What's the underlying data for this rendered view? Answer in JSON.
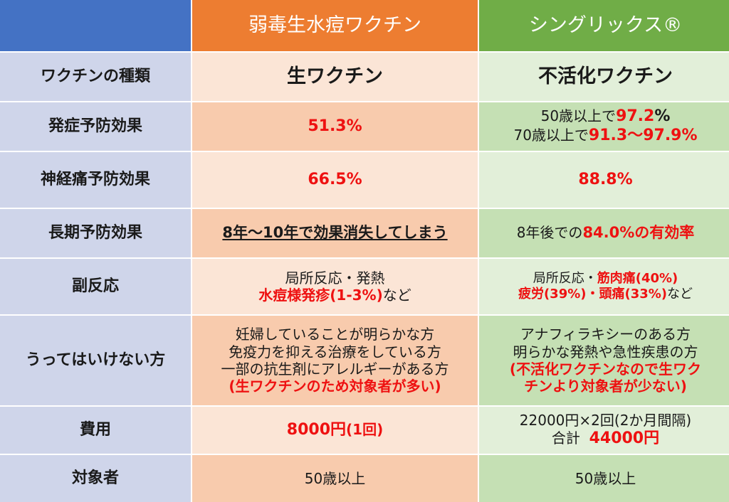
{
  "colors": {
    "header_blank": "#4472c4",
    "header_live": "#ed7d31",
    "header_shingrix": "#70ad47",
    "label_bg": "#cfd5ea",
    "live_light": "#fbe5d6",
    "live_dark": "#f8cbad",
    "shingrix_light": "#e2efd9",
    "shingrix_dark": "#c5e0b4",
    "emphasis_red": "#ee1111"
  },
  "header": {
    "col_live": "弱毒生水痘ワクチン",
    "col_shingrix": "シングリックス®"
  },
  "rows": {
    "type": {
      "label": "ワクチンの種類",
      "live": "生ワクチン",
      "shingrix": "不活化ワクチン"
    },
    "prevention": {
      "label": "発症予防効果",
      "live": "51.3%",
      "shingrix_l1_a": "50歳以上で",
      "shingrix_l1_b": "97.2",
      "shingrix_l1_c": "%",
      "shingrix_l2_a": "70歳以上で",
      "shingrix_l2_b": "91.3〜97.9%"
    },
    "neuralgia": {
      "label": "神経痛予防効果",
      "live": "66.5%",
      "shingrix": "88.8%"
    },
    "longterm": {
      "label": "長期予防効果",
      "live": "8年〜10年で効果消失してしまう",
      "shingrix_a": "8年後での",
      "shingrix_b": "84.0%の有効率"
    },
    "side_effects": {
      "label": "副反応",
      "live_l1": "局所反応・発熱",
      "live_l2_a": "水痘様発疹(1-3%)",
      "live_l2_b": "など",
      "shingrix_l1_a": "局所反応・",
      "shingrix_l1_b": "筋肉痛(40%)",
      "shingrix_l2_a": "疲労(39%)・頭痛(33%)",
      "shingrix_l2_b": "など"
    },
    "contraindications": {
      "label": "うってはいけない方",
      "live_l1": "妊婦していることが明らかな方",
      "live_l2": "免疫力を抑える治療をしている方",
      "live_l3": "一部の抗生剤にアレルギーがある方",
      "live_l4": "(生ワクチンのため対象者が多い)",
      "shingrix_l1": "アナフィラキシーのある方",
      "shingrix_l2": "明らかな発熱や急性疾患の方",
      "shingrix_l3": "(不活化ワクチンなので生ワク",
      "shingrix_l4": "チンより対象者が少ない)"
    },
    "cost": {
      "label": "費用",
      "live_a": "8000円",
      "live_b": "(1回)",
      "shingrix_l1": "22000円×2回(2か月間隔)",
      "shingrix_l2_a": "合計",
      "shingrix_l2_b": "44000円"
    },
    "target": {
      "label": "対象者",
      "live": "50歳以上",
      "shingrix": "50歳以上"
    }
  }
}
